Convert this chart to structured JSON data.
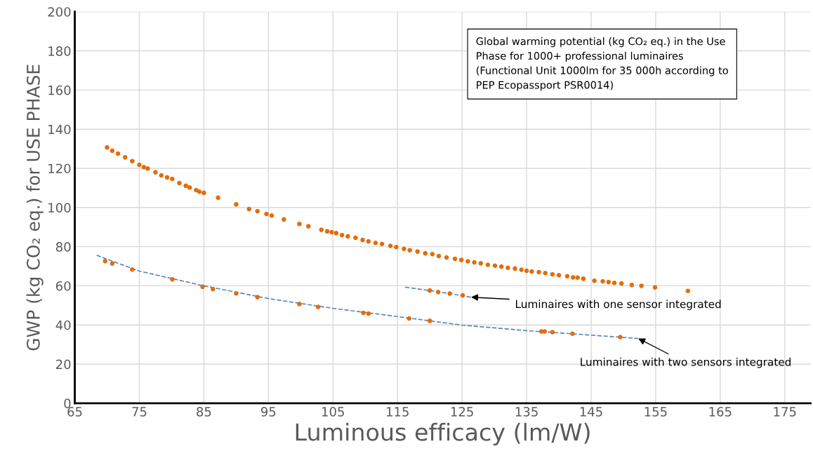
{
  "chart_data": {
    "type": "scatter",
    "xlabel": "Luminous efficacy (lm/W)",
    "ylabel": "GWP (kg CO₂ eq.) for USE PHASE",
    "xlim": [
      65,
      179
    ],
    "xticks": [
      65,
      75,
      85,
      95,
      105,
      115,
      125,
      135,
      145,
      155,
      165,
      175
    ],
    "ylim": [
      0,
      200
    ],
    "yticks": [
      0,
      20,
      40,
      60,
      80,
      100,
      120,
      140,
      160,
      180,
      200
    ],
    "grid": true,
    "marker": "circle",
    "series": [
      {
        "color": "#e46c0a",
        "x": [
          70.0,
          70.8,
          71.7,
          72.8,
          73.9,
          75.0,
          75.7,
          76.3,
          77.5,
          78.4,
          79.3,
          80.1,
          81.2,
          82.2,
          82.8,
          83.8,
          84.3,
          85.0,
          87.2,
          90.0,
          92.0,
          93.3,
          94.7,
          95.5,
          97.4,
          99.8,
          101.2,
          103.2,
          104.1,
          104.8,
          105.5,
          106.4,
          107.3,
          108.5,
          109.6,
          110.5,
          111.6,
          112.6,
          113.9,
          114.8,
          116.0,
          116.9,
          118.1,
          119.3,
          120.4,
          121.4,
          122.6,
          123.9,
          124.9,
          125.9,
          126.9,
          127.9,
          129.0,
          130.1,
          131.1,
          132.1,
          133.2,
          134.2,
          135.0,
          135.8,
          136.9,
          137.9,
          139.0,
          140.0,
          141.3,
          142.2,
          142.9,
          143.8,
          145.5,
          146.8,
          147.7,
          148.6,
          149.7,
          151.3,
          152.8,
          154.9,
          160.0
        ],
        "values": [
          130.7,
          129.0,
          127.5,
          125.6,
          123.7,
          121.8,
          120.6,
          119.9,
          118.0,
          116.4,
          115.4,
          114.6,
          112.5,
          111.1,
          110.2,
          108.9,
          108.1,
          107.5,
          105.0,
          101.6,
          99.2,
          98.1,
          96.7,
          95.9,
          93.9,
          91.6,
          90.4,
          88.6,
          87.8,
          87.4,
          86.9,
          85.9,
          85.3,
          84.5,
          83.4,
          82.7,
          81.9,
          81.4,
          80.4,
          79.8,
          78.9,
          78.2,
          77.5,
          76.6,
          76.2,
          75.2,
          74.5,
          73.8,
          73.2,
          72.5,
          72.0,
          71.5,
          70.7,
          70.3,
          69.8,
          69.2,
          68.8,
          68.2,
          67.7,
          67.3,
          67.0,
          66.5,
          65.9,
          65.4,
          64.9,
          64.3,
          64.2,
          63.6,
          62.6,
          62.3,
          61.9,
          61.5,
          61.2,
          60.4,
          60.0,
          59.2,
          57.4
        ]
      },
      {
        "color": "#e46c0a",
        "x": [
          120.0,
          121.3,
          123.1,
          125.1
        ],
        "values": [
          57.6,
          56.8,
          56.0,
          55.1
        ]
      },
      {
        "color": "#e46c0a",
        "x": [
          69.7,
          70.8,
          73.9,
          80.1,
          84.8,
          86.4,
          90.0,
          93.3,
          99.8,
          102.7,
          109.7,
          110.5,
          116.8,
          120.0,
          137.3,
          137.8,
          139.0,
          142.1,
          149.5
        ],
        "values": [
          72.6,
          71.4,
          68.3,
          63.3,
          59.5,
          58.3,
          56.1,
          54.2,
          50.7,
          49.2,
          46.2,
          45.8,
          43.3,
          42.1,
          36.7,
          36.7,
          36.3,
          35.5,
          33.8
        ]
      },
      {
        "type": "line",
        "color": "#5b87b8",
        "line_style": "dashed",
        "marker": "none",
        "x": [
          116.2,
          121.0,
          126.4
        ],
        "values": [
          59.3,
          57.1,
          54.2
        ]
      },
      {
        "type": "line",
        "color": "#5b87b8",
        "line_style": "dashed",
        "marker": "none",
        "x": [
          68.4,
          75,
          85,
          95,
          105,
          115,
          125,
          135,
          145,
          152.3
        ],
        "values": [
          75.6,
          67.5,
          60.0,
          53.5,
          48.5,
          44.3,
          39.9,
          37.1,
          34.8,
          33.1
        ]
      }
    ],
    "annotations": [
      "Global warming potential (kg CO₂ eq.) in the Use\nPhase for 1000+ professional luminaires\n(Functional Unit 1000lm for 35 000h according to\nPEP Ecopassport PSR0014)",
      {
        "text": "Luminaires with one sensor integrated",
        "x": 126.4,
        "y": 54.2
      },
      {
        "text": "Luminaires with two sensors integrated",
        "x": 152.3,
        "y": 33.1
      }
    ]
  }
}
